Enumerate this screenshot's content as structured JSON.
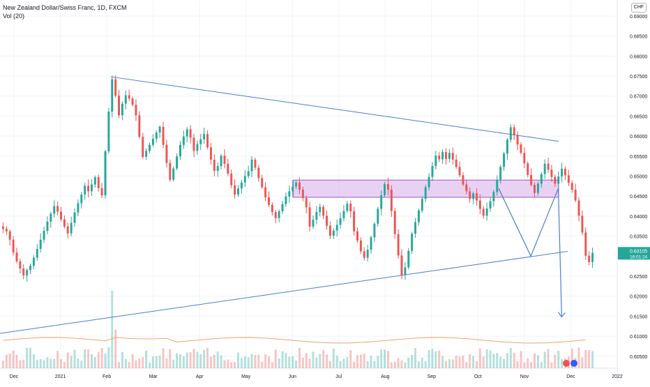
{
  "chart_data": {
    "type": "candlestick",
    "symbol_title": "New Zealand Dollar/Swiss Franc, 1D, FXCM",
    "indicator_label": "Vol (20)",
    "currency_badge": "CHF",
    "last_price_label": "0.63105",
    "countdown_label": "16:01:24",
    "y_ticks": [
      "0.69000",
      "0.68500",
      "0.68000",
      "0.67500",
      "0.67000",
      "0.66500",
      "0.66000",
      "0.65500",
      "0.65000",
      "0.64500",
      "0.64000",
      "0.63500",
      "0.62500",
      "0.62000",
      "0.61500",
      "0.61000",
      "0.60500"
    ],
    "x_ticks": [
      "Dec",
      "2021",
      "Feb",
      "Mar",
      "Apr",
      "May",
      "Jun",
      "Jul",
      "Aug",
      "Sep",
      "Oct",
      "Nov",
      "Dec",
      "2022"
    ],
    "ylim": [
      0.602,
      0.694
    ],
    "price_path_close": [
      0.6368,
      0.6362,
      0.6341,
      0.6309,
      0.6287,
      0.6269,
      0.6252,
      0.6265,
      0.6276,
      0.6296,
      0.6318,
      0.6341,
      0.6363,
      0.6386,
      0.6406,
      0.6425,
      0.6411,
      0.6392,
      0.6374,
      0.6357,
      0.6383,
      0.6409,
      0.6432,
      0.6454,
      0.6476,
      0.6462,
      0.6479,
      0.6497,
      0.647,
      0.6452,
      0.6562,
      0.6661,
      0.6742,
      0.6701,
      0.6652,
      0.6681,
      0.6702,
      0.6694,
      0.6678,
      0.6652,
      0.6598,
      0.6548,
      0.6563,
      0.6578,
      0.6593,
      0.6609,
      0.6623,
      0.6578,
      0.6533,
      0.6491,
      0.6519,
      0.6549,
      0.6578,
      0.6599,
      0.6617,
      0.6596,
      0.6563,
      0.658,
      0.6592,
      0.6605,
      0.6572,
      0.6541,
      0.6513,
      0.6525,
      0.6551,
      0.6531,
      0.6506,
      0.6477,
      0.6454,
      0.6469,
      0.6484,
      0.65,
      0.6512,
      0.6541,
      0.6521,
      0.6495,
      0.6472,
      0.6447,
      0.6428,
      0.641,
      0.6395,
      0.6412,
      0.643,
      0.6449,
      0.6462,
      0.6474,
      0.6484,
      0.6466,
      0.6445,
      0.6422,
      0.6374,
      0.6391,
      0.641,
      0.6423,
      0.6401,
      0.6376,
      0.6351,
      0.6364,
      0.6378,
      0.6395,
      0.6413,
      0.6431,
      0.6412,
      0.6362,
      0.6339,
      0.6312,
      0.6296,
      0.6316,
      0.6347,
      0.6381,
      0.6418,
      0.6452,
      0.648,
      0.6466,
      0.6413,
      0.6355,
      0.6302,
      0.6253,
      0.6272,
      0.6313,
      0.6356,
      0.6385,
      0.6414,
      0.6443,
      0.6472,
      0.6498,
      0.6525,
      0.6551,
      0.6542,
      0.656,
      0.6543,
      0.6558,
      0.6541,
      0.6523,
      0.6502,
      0.6479,
      0.6462,
      0.6443,
      0.6457,
      0.6439,
      0.6418,
      0.6401,
      0.6419,
      0.6437,
      0.646,
      0.6491,
      0.6523,
      0.6556,
      0.6591,
      0.6622,
      0.6603,
      0.6579,
      0.6558,
      0.6532,
      0.6503,
      0.6478,
      0.6458,
      0.6481,
      0.6505,
      0.6531,
      0.6516,
      0.6498,
      0.6481,
      0.6499,
      0.6518,
      0.6502,
      0.6483,
      0.6466,
      0.6439,
      0.6401,
      0.6359,
      0.6301,
      0.6285,
      0.6308
    ],
    "volume_ma_note": "",
    "trendline_upper": [
      [
        0.18,
        0.6748
      ],
      [
        0.905,
        0.6587
      ]
    ],
    "trendline_lower": [
      [
        0.0,
        0.6107
      ],
      [
        0.92,
        0.6312
      ]
    ],
    "resistance_zone": {
      "x_from_frac": 0.475,
      "x_to_frac": 0.905,
      "y_top": 0.649,
      "y_bottom": 0.6447
    },
    "forecast_path": [
      [
        0.808,
        0.6469
      ],
      [
        0.86,
        0.63
      ],
      [
        0.9045,
        0.6469
      ],
      [
        0.91,
        0.6148
      ]
    ],
    "colors": {
      "up": "#26a69a",
      "down": "#ef5350",
      "trend": "#4a7bd4",
      "zone_fill": "#e0bdf0",
      "zone_stroke": "#a05ac8",
      "grid": "#f0f3fa",
      "vol_ma": "#f1a464",
      "price_tag": "#26a69a"
    }
  }
}
